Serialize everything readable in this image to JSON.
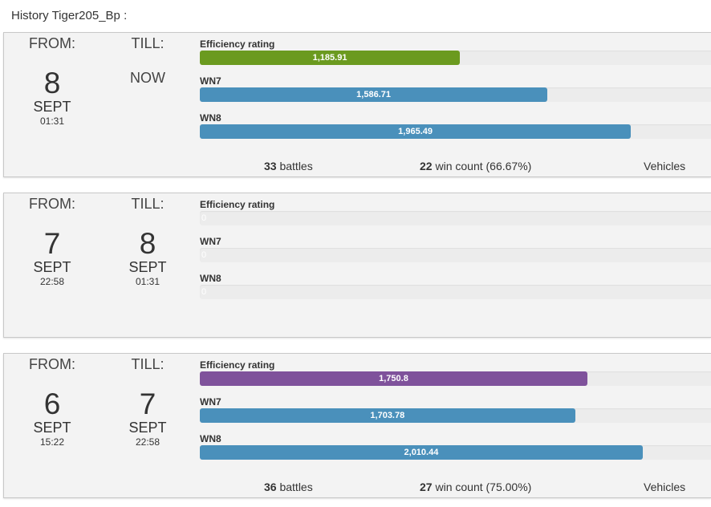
{
  "page": {
    "title": "History Tiger205_Bp :"
  },
  "colors": {
    "green": "#6b9a1f",
    "blue": "#4a90bb",
    "purple": "#7f529b"
  },
  "labels": {
    "from": "FROM:",
    "till": "TILL:",
    "efficiency": "Efficiency rating",
    "wn7": "WN7",
    "wn8": "WN8",
    "battles": "battles",
    "win_count": "win count",
    "vehicles": "Vehicles"
  },
  "sessions": [
    {
      "from": {
        "day": "8",
        "month": "SEPT",
        "time": "01:31"
      },
      "till": {
        "now": "NOW"
      },
      "efficiency": {
        "value": "1,185.91",
        "fraction": 0.508,
        "color": "green"
      },
      "wn7": {
        "value": "1,586.71",
        "fraction": 0.679,
        "color": "blue"
      },
      "wn8": {
        "value": "1,965.49",
        "fraction": 0.842,
        "color": "blue"
      },
      "battles": "33",
      "wins": "22",
      "win_pct": "(66.67%)"
    },
    {
      "from": {
        "day": "7",
        "month": "SEPT",
        "time": "22:58"
      },
      "till": {
        "day": "8",
        "month": "SEPT",
        "time": "01:31"
      },
      "efficiency": {
        "value": "0",
        "fraction": 0
      },
      "wn7": {
        "value": "0",
        "fraction": 0
      },
      "wn8": {
        "value": "0",
        "fraction": 0
      }
    },
    {
      "from": {
        "day": "6",
        "month": "SEPT",
        "time": "15:22"
      },
      "till": {
        "day": "7",
        "month": "SEPT",
        "time": "22:58"
      },
      "efficiency": {
        "value": "1,750.8",
        "fraction": 0.757,
        "color": "purple"
      },
      "wn7": {
        "value": "1,703.78",
        "fraction": 0.733,
        "color": "blue"
      },
      "wn8": {
        "value": "2,010.44",
        "fraction": 0.865,
        "color": "blue"
      },
      "battles": "36",
      "wins": "27",
      "win_pct": "(75.00%)"
    }
  ]
}
